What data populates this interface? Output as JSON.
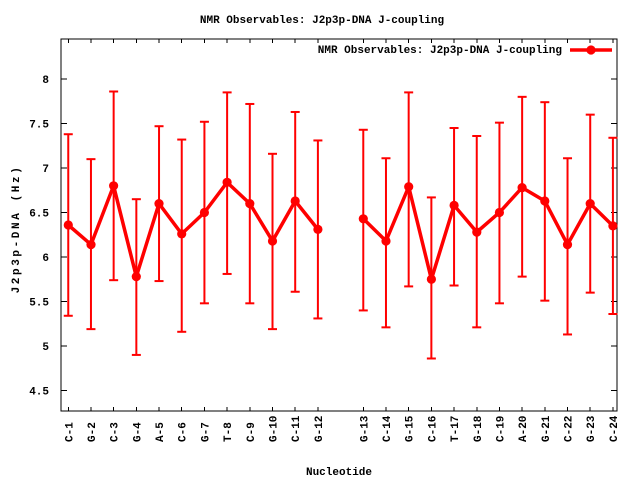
{
  "window": {
    "background": "#ffffff"
  },
  "chart_data": {
    "type": "line",
    "title": "NMR Observables: J2p3p-DNA J-coupling",
    "xlabel": "Nucleotide",
    "ylabel": "J2p3p-DNA (Hz)",
    "legend": {
      "label": "NMR Observables: J2p3p-DNA J-coupling",
      "position": "top-right-inside",
      "marker": "filled-circle-on-line"
    },
    "series_color": "#ff0000",
    "axis_color": "#000000",
    "grid": false,
    "error_bars": true,
    "ylim": [
      4.27,
      8.45
    ],
    "xlim": [
      0.68,
      25.18
    ],
    "ytick_values": [
      4.5,
      5,
      5.5,
      6,
      6.5,
      7,
      7.5,
      8
    ],
    "ytick_labels": [
      "4.5",
      "5",
      "5.5",
      "6",
      "6.5",
      "7",
      "7.5",
      "8"
    ],
    "categories": [
      "C-1",
      "G-2",
      "C-3",
      "G-4",
      "A-5",
      "C-6",
      "G-7",
      "T-8",
      "C-9",
      "G-10",
      "C-11",
      "G-12",
      "G-13",
      "C-14",
      "G-15",
      "C-16",
      "T-17",
      "G-18",
      "C-19",
      "A-20",
      "G-21",
      "C-22",
      "G-23",
      "C-24"
    ],
    "series": [
      {
        "name": "NMR Observables: J2p3p-DNA J-coupling",
        "points": [
          {
            "label": "C-1",
            "x": 1,
            "y": 6.36,
            "ylow": 5.34,
            "yhigh": 7.38
          },
          {
            "label": "G-2",
            "x": 2,
            "y": 6.14,
            "ylow": 5.19,
            "yhigh": 7.1
          },
          {
            "label": "C-3",
            "x": 3,
            "y": 6.8,
            "ylow": 5.74,
            "yhigh": 7.86
          },
          {
            "label": "G-4",
            "x": 4,
            "y": 5.78,
            "ylow": 4.9,
            "yhigh": 6.65
          },
          {
            "label": "A-5",
            "x": 5,
            "y": 6.6,
            "ylow": 5.73,
            "yhigh": 7.47
          },
          {
            "label": "C-6",
            "x": 6,
            "y": 6.26,
            "ylow": 5.16,
            "yhigh": 7.32
          },
          {
            "label": "G-7",
            "x": 7,
            "y": 6.5,
            "ylow": 5.48,
            "yhigh": 7.52
          },
          {
            "label": "T-8",
            "x": 8,
            "y": 6.84,
            "ylow": 5.81,
            "yhigh": 7.85
          },
          {
            "label": "C-9",
            "x": 9,
            "y": 6.6,
            "ylow": 5.48,
            "yhigh": 7.72
          },
          {
            "label": "G-10",
            "x": 10,
            "y": 6.18,
            "ylow": 5.19,
            "yhigh": 7.16
          },
          {
            "label": "C-11",
            "x": 11,
            "y": 6.63,
            "ylow": 5.61,
            "yhigh": 7.63
          },
          {
            "label": "G-12",
            "x": 12,
            "y": 6.31,
            "ylow": 5.31,
            "yhigh": 7.31
          },
          {
            "label": "G-13",
            "x": 14,
            "y": 6.43,
            "ylow": 5.4,
            "yhigh": 7.43
          },
          {
            "label": "C-14",
            "x": 15,
            "y": 6.18,
            "ylow": 5.21,
            "yhigh": 7.11
          },
          {
            "label": "G-15",
            "x": 16,
            "y": 6.79,
            "ylow": 5.67,
            "yhigh": 7.85
          },
          {
            "label": "C-16",
            "x": 17,
            "y": 5.75,
            "ylow": 4.86,
            "yhigh": 6.67
          },
          {
            "label": "T-17",
            "x": 18,
            "y": 6.58,
            "ylow": 5.68,
            "yhigh": 7.45
          },
          {
            "label": "G-18",
            "x": 19,
            "y": 6.28,
            "ylow": 5.21,
            "yhigh": 7.36
          },
          {
            "label": "C-19",
            "x": 20,
            "y": 6.5,
            "ylow": 5.48,
            "yhigh": 7.51
          },
          {
            "label": "A-20",
            "x": 21,
            "y": 6.78,
            "ylow": 5.78,
            "yhigh": 7.8
          },
          {
            "label": "G-21",
            "x": 22,
            "y": 6.63,
            "ylow": 5.51,
            "yhigh": 7.74
          },
          {
            "label": "C-22",
            "x": 23,
            "y": 6.14,
            "ylow": 5.13,
            "yhigh": 7.11
          },
          {
            "label": "G-23",
            "x": 24,
            "y": 6.6,
            "ylow": 5.6,
            "yhigh": 7.6
          },
          {
            "label": "C-24",
            "x": 25,
            "y": 6.35,
            "ylow": 5.36,
            "yhigh": 7.34
          }
        ]
      }
    ]
  }
}
